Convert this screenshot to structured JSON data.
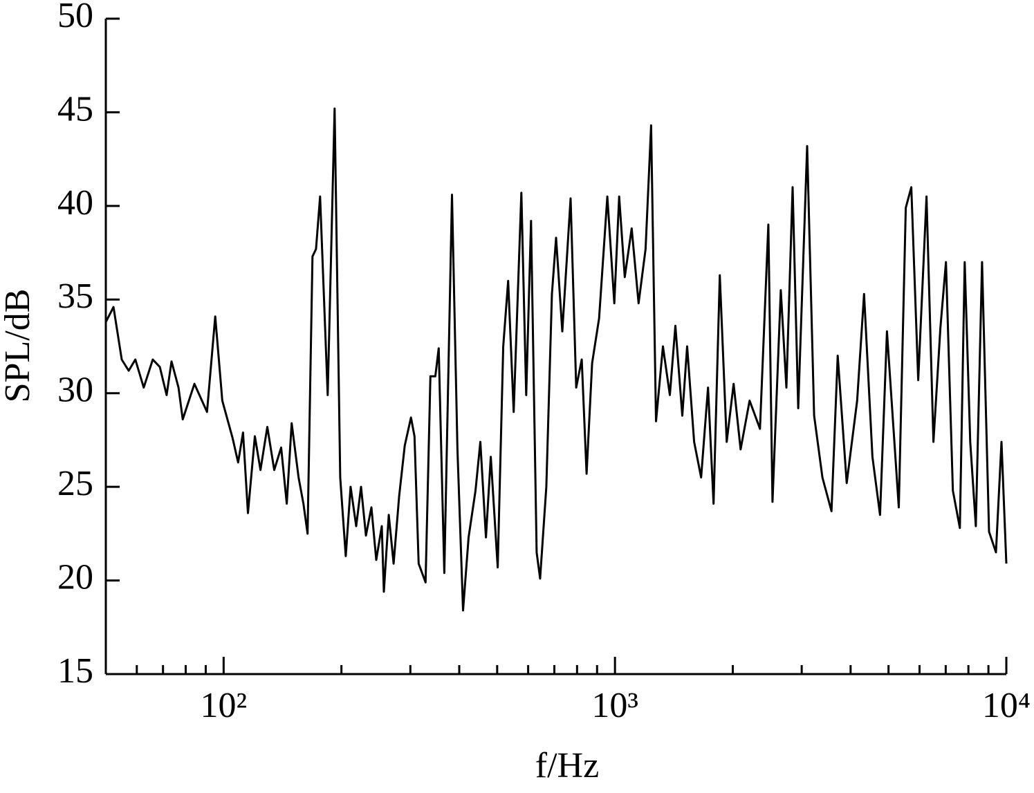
{
  "chart_data": {
    "type": "line",
    "x_label": "f/Hz",
    "y_label": "SPL/dB",
    "color": "#000000",
    "xscale": "log",
    "xlim": [
      50,
      10000
    ],
    "ylim": [
      15,
      50
    ],
    "xticks": [
      {
        "value": 100,
        "label": "10²"
      },
      {
        "value": 1000,
        "label": "10³"
      },
      {
        "value": 10000,
        "label": "10⁴"
      }
    ],
    "xminor_ticks": [
      60,
      70,
      80,
      90,
      200,
      300,
      400,
      500,
      600,
      700,
      800,
      900,
      2000,
      3000,
      4000,
      5000,
      6000,
      7000,
      8000,
      9000
    ],
    "yticks": [
      15,
      20,
      25,
      30,
      35,
      40,
      45,
      50
    ],
    "grid": false,
    "x": [
      50,
      52.3,
      54.9,
      57.2,
      59.5,
      62.5,
      65.9,
      68.7,
      71.5,
      73.6,
      76.7,
      78.6,
      84.2,
      90.7,
      95.2,
      99.2,
      105.4,
      108.9,
      112.1,
      115.4,
      120.2,
      124.2,
      129.3,
      134.7,
      140.3,
      145.0,
      149.2,
      155.4,
      159.9,
      163.9,
      168.7,
      172.2,
      176.4,
      184.5,
      192.1,
      198.6,
      205.1,
      211.1,
      218.1,
      224.4,
      231.0,
      238.6,
      245.5,
      253.6,
      256.7,
      264.2,
      271.9,
      280.9,
      290.3,
      301.1,
      307.4,
      315.0,
      328.1,
      337.6,
      347.4,
      354.5,
      366.4,
      383.2,
      395.8,
      409.0,
      422.6,
      440.2,
      452.9,
      468.0,
      481.6,
      501.6,
      518.2,
      533.3,
      551.1,
      576.4,
      593.0,
      610.3,
      630.6,
      643.6,
      667.7,
      690.0,
      707.1,
      733.5,
      770.3,
      795.9,
      822.3,
      846.1,
      874.2,
      910.6,
      956.1,
      995.9,
      1024.7,
      1059,
      1103,
      1149,
      1197,
      1237,
      1273,
      1326,
      1381,
      1427,
      1486,
      1529,
      1593,
      1660,
      1729,
      1786,
      1853,
      1930,
      2010,
      2094,
      2208,
      2347,
      2465,
      2526,
      2653,
      2741,
      2844,
      2939,
      3098,
      3228,
      3389,
      3575,
      3708,
      3910,
      4157,
      4330,
      4548,
      4757,
      4955,
      5311,
      5534,
      5717,
      5955,
      6253,
      6513,
      6786,
      7010,
      7302,
      7606,
      7826,
      8087,
      8356,
      8669,
      9031,
      9406,
      9718,
      10000
    ],
    "values": [
      33.8,
      34.6,
      31.8,
      31.2,
      31.8,
      30.3,
      31.8,
      31.4,
      29.9,
      31.7,
      30.3,
      28.6,
      30.5,
      29.0,
      34.1,
      29.6,
      27.6,
      26.3,
      27.9,
      23.6,
      27.7,
      25.9,
      28.2,
      25.9,
      27.1,
      24.1,
      28.4,
      25.5,
      24.1,
      22.5,
      37.3,
      37.7,
      40.5,
      29.9,
      45.2,
      25.5,
      21.3,
      25.0,
      22.9,
      25.0,
      22.4,
      23.9,
      21.1,
      22.9,
      19.4,
      23.5,
      20.9,
      24.5,
      27.2,
      28.7,
      27.7,
      20.9,
      19.9,
      30.9,
      30.9,
      32.4,
      20.4,
      40.6,
      27.0,
      18.4,
      22.3,
      24.8,
      27.4,
      22.3,
      26.6,
      20.7,
      32.5,
      36.0,
      29.0,
      40.7,
      29.9,
      39.2,
      21.5,
      20.1,
      25.0,
      35.3,
      38.3,
      33.3,
      40.4,
      30.3,
      31.8,
      25.7,
      31.6,
      34.0,
      40.5,
      34.8,
      40.5,
      36.2,
      38.8,
      34.8,
      37.7,
      44.3,
      28.5,
      32.5,
      29.9,
      33.6,
      28.8,
      32.5,
      27.4,
      25.5,
      30.3,
      24.1,
      36.3,
      27.4,
      30.5,
      27.0,
      29.6,
      28.1,
      39.0,
      24.2,
      35.5,
      30.3,
      41.0,
      29.2,
      43.2,
      28.8,
      25.5,
      23.7,
      32.0,
      25.2,
      29.6,
      35.3,
      26.6,
      23.5,
      33.3,
      23.9,
      39.9,
      41.0,
      30.7,
      40.5,
      27.4,
      33.5,
      37.0,
      24.8,
      22.8,
      37.0,
      27.4,
      22.9,
      37.0,
      22.6,
      21.5,
      27.4,
      20.9
    ]
  }
}
